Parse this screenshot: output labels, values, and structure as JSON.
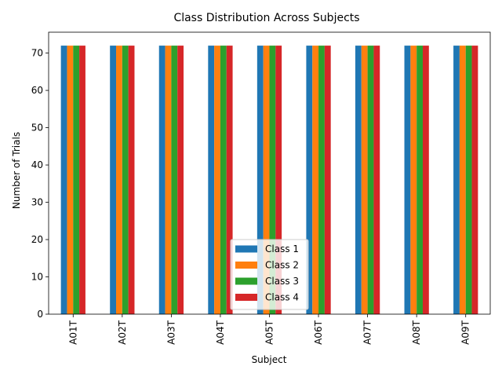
{
  "chart_data": {
    "type": "bar",
    "title": "Class Distribution Across Subjects",
    "xlabel": "Subject",
    "ylabel": "Number of Trials",
    "categories": [
      "A01T",
      "A02T",
      "A03T",
      "A04T",
      "A05T",
      "A06T",
      "A07T",
      "A08T",
      "A09T"
    ],
    "series": [
      {
        "name": "Class 1",
        "color": "#1f77b4",
        "values": [
          72,
          72,
          72,
          72,
          72,
          72,
          72,
          72,
          72
        ]
      },
      {
        "name": "Class 2",
        "color": "#ff7f0e",
        "values": [
          72,
          72,
          72,
          72,
          72,
          72,
          72,
          72,
          72
        ]
      },
      {
        "name": "Class 3",
        "color": "#2ca02c",
        "values": [
          72,
          72,
          72,
          72,
          72,
          72,
          72,
          72,
          72
        ]
      },
      {
        "name": "Class 4",
        "color": "#d62728",
        "values": [
          72,
          72,
          72,
          72,
          72,
          72,
          72,
          72,
          72
        ]
      }
    ],
    "ylim": [
      0,
      75.6
    ],
    "yticks": [
      0,
      10,
      20,
      30,
      40,
      50,
      60,
      70
    ],
    "grid": false,
    "legend_position": "bottom-center"
  }
}
